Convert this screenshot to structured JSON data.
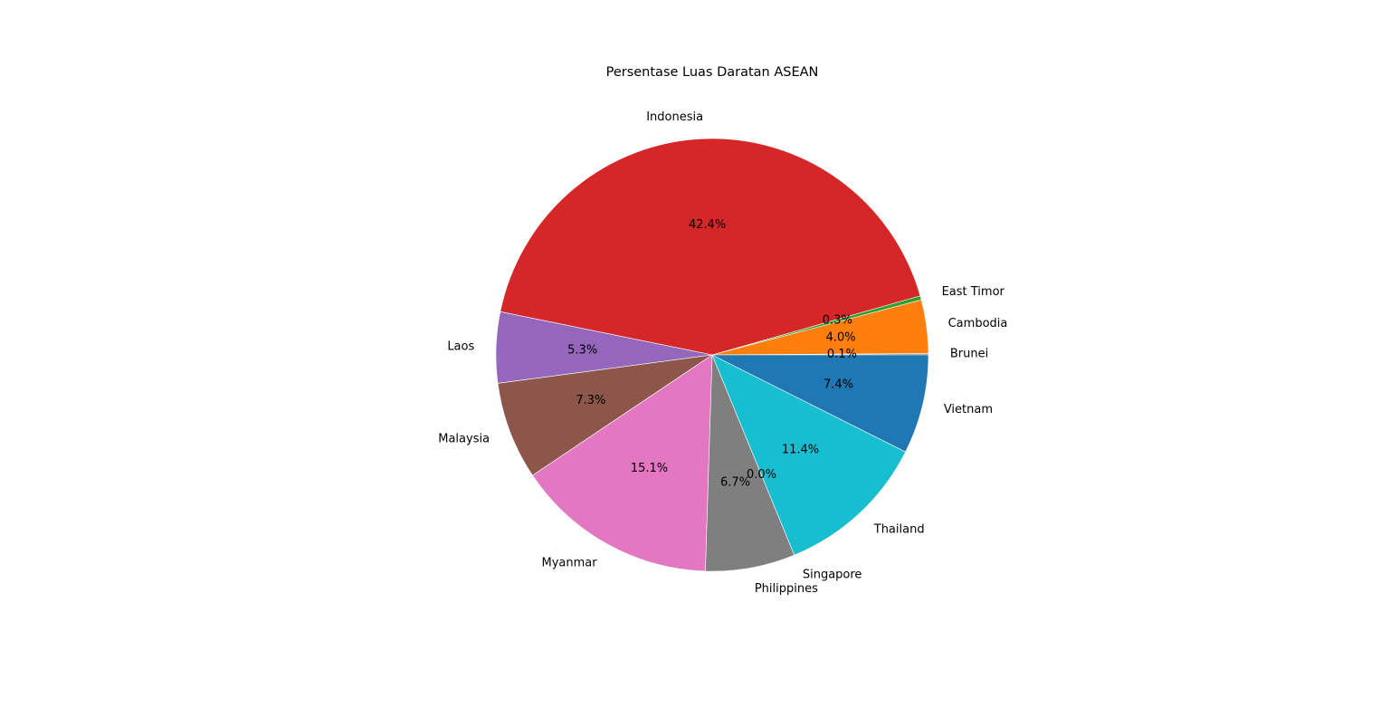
{
  "chart_data": {
    "type": "pie",
    "title": "Persentase Luas Daratan ASEAN",
    "start_angle_deg": 0,
    "direction": "counterclockwise",
    "edge_color": "#ffffff",
    "slices": [
      {
        "label": "Brunei",
        "value": 0.1,
        "pct_text": "0.1%",
        "color": "#7f7f7f"
      },
      {
        "label": "Cambodia",
        "value": 4.0,
        "pct_text": "4.0%",
        "color": "#ff7f0e"
      },
      {
        "label": "East Timor",
        "value": 0.3,
        "pct_text": "0.3%",
        "color": "#2ca02c"
      },
      {
        "label": "Indonesia",
        "value": 42.4,
        "pct_text": "42.4%",
        "color": "#d62728"
      },
      {
        "label": "Laos",
        "value": 5.3,
        "pct_text": "5.3%",
        "color": "#9467bd"
      },
      {
        "label": "Malaysia",
        "value": 7.3,
        "pct_text": "7.3%",
        "color": "#8c564b"
      },
      {
        "label": "Myanmar",
        "value": 15.1,
        "pct_text": "15.1%",
        "color": "#e377c2"
      },
      {
        "label": "Philippines",
        "value": 6.7,
        "pct_text": "6.7%",
        "color": "#7f7f7f"
      },
      {
        "label": "Singapore",
        "value": 0.0,
        "pct_text": "0.0%",
        "color": "#bcbd22"
      },
      {
        "label": "Thailand",
        "value": 11.4,
        "pct_text": "11.4%",
        "color": "#17becf"
      },
      {
        "label": "Vietnam",
        "value": 7.4,
        "pct_text": "7.4%",
        "color": "#1f77b4"
      }
    ]
  }
}
